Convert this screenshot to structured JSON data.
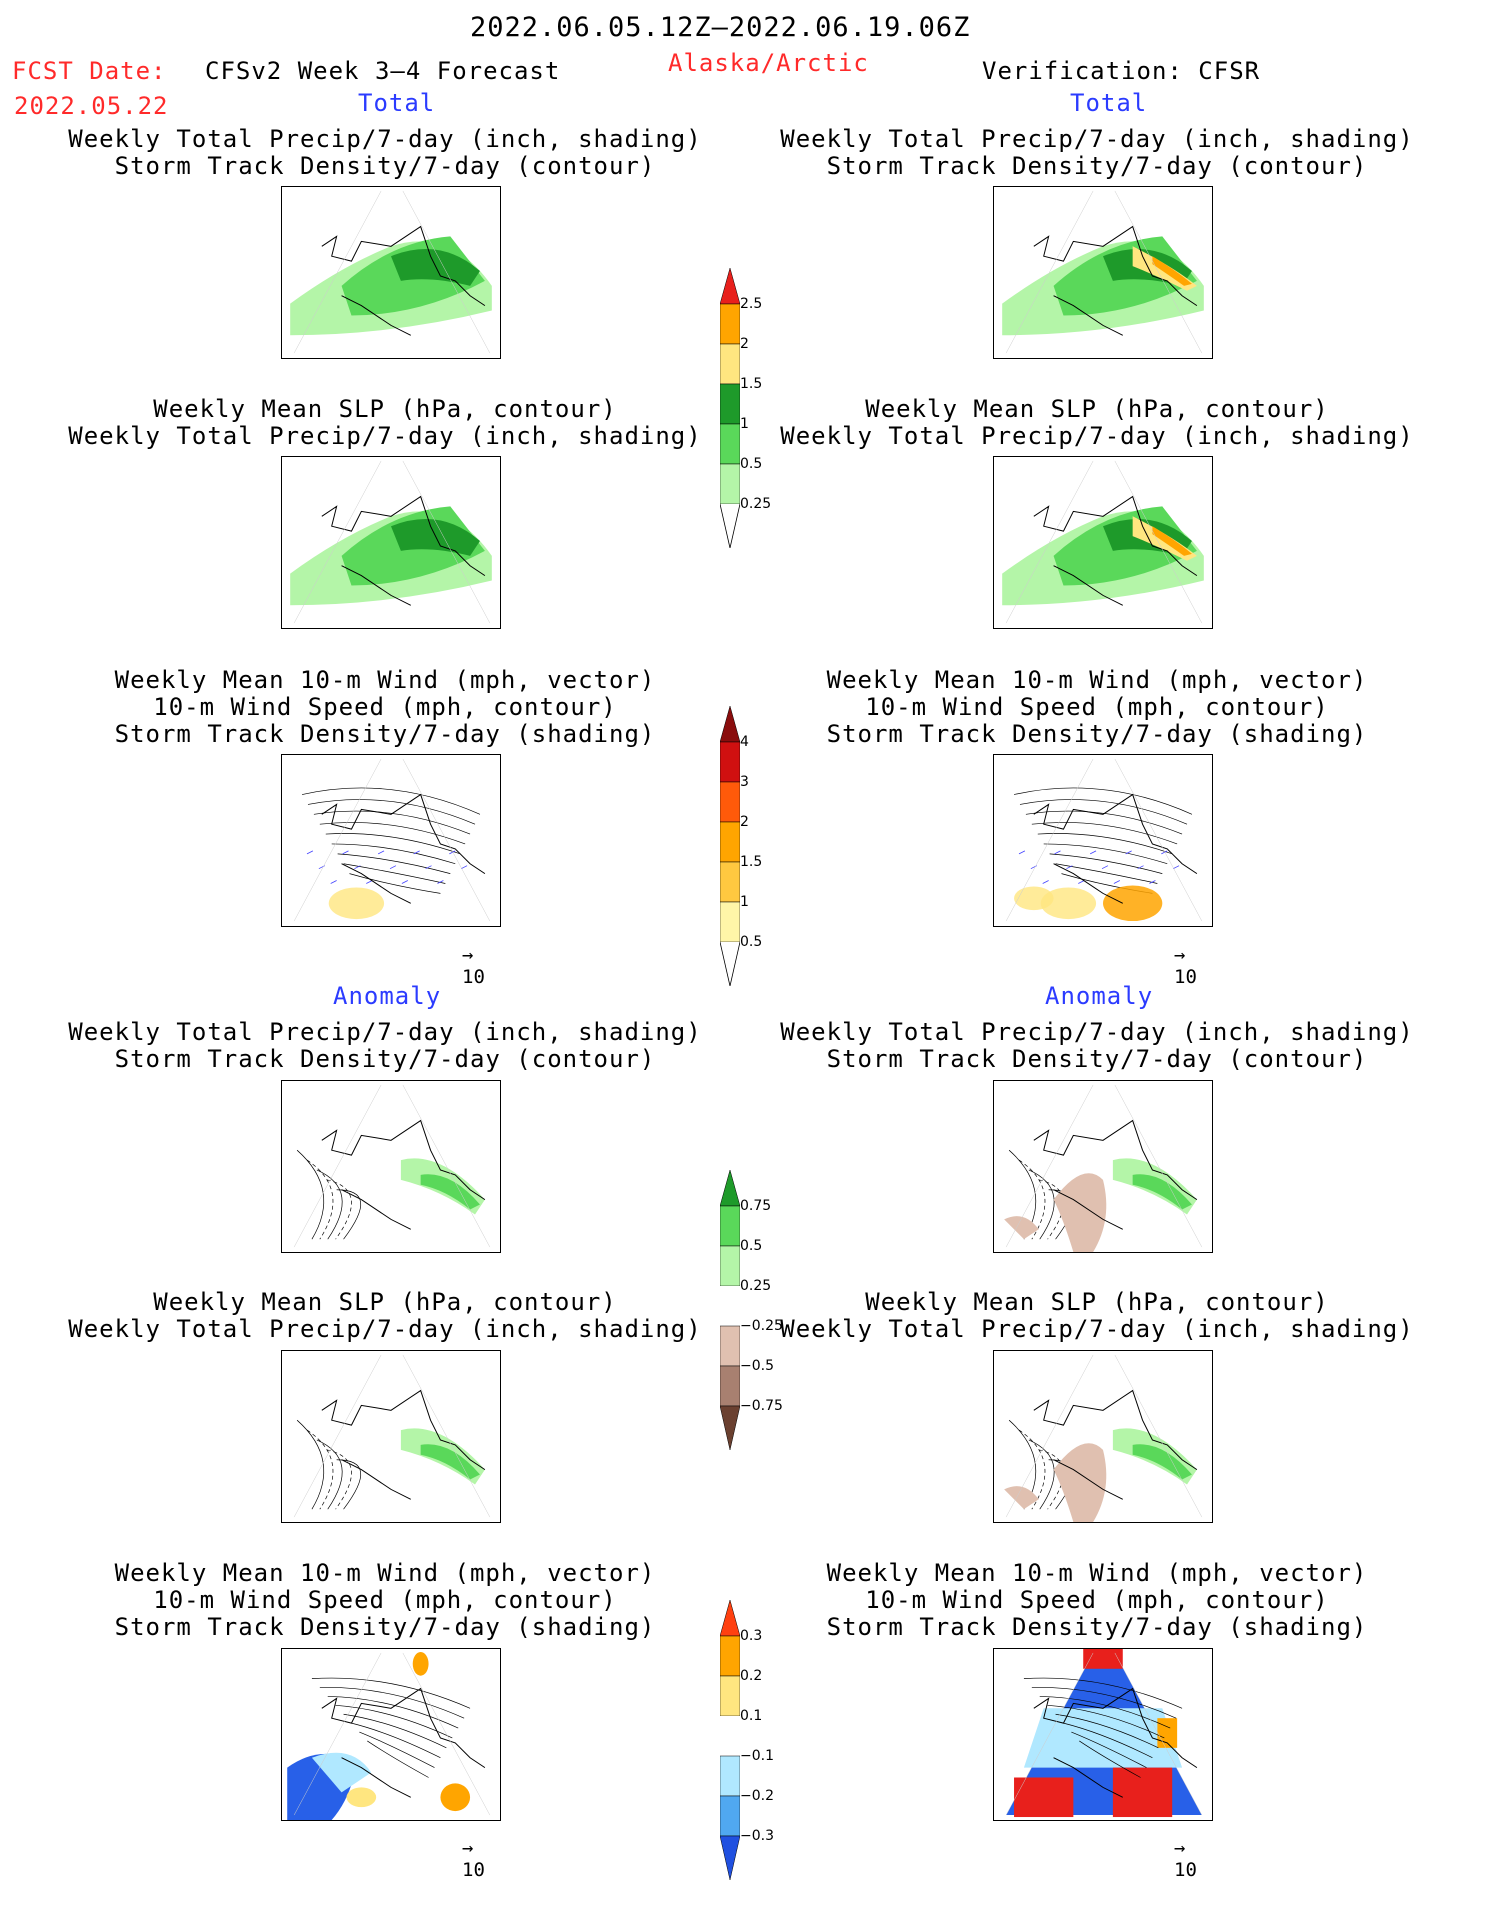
{
  "header": {
    "date_range": "2022.06.05.12Z–2022.06.19.06Z",
    "fcst_label": "FCST Date:",
    "fcst_date": "2022.05.22",
    "model": "CFSv2 Week 3–4 Forecast",
    "region": "Alaska/Arctic",
    "verification": "Verification: CFSR"
  },
  "sections": {
    "total": "Total",
    "anomaly": "Anomaly"
  },
  "captions": {
    "precip_track": [
      "Weekly Total Precip/7-day (inch, shading)",
      "Storm Track Density/7-day (contour)"
    ],
    "slp_precip": [
      "Weekly Mean SLP (hPa, contour)",
      "Weekly Total Precip/7-day (inch, shading)"
    ],
    "wind_track": [
      "Weekly Mean 10-m Wind (mph, vector)",
      "10-m Wind Speed (mph, contour)",
      "Storm Track Density/7-day (shading)"
    ]
  },
  "vector_scale": "10",
  "colorbars": {
    "precip_total": [
      "2.5",
      "2",
      "1.5",
      "1",
      "0.5",
      "0.25"
    ],
    "track_total": [
      "4",
      "3",
      "2",
      "1.5",
      "1",
      "0.5"
    ],
    "precip_anom": [
      "0.75",
      "0.5",
      "0.25",
      "−0.25",
      "−0.5",
      "−0.75"
    ],
    "track_anom": [
      "0.3",
      "0.2",
      "0.1",
      "−0.1",
      "−0.2",
      "−0.3"
    ]
  },
  "colors": {
    "green_light": "#b4f5a8",
    "green_mid": "#5ad85a",
    "green_dark": "#1e9a2a",
    "yellow": "#ffe680",
    "orange": "#ffa500",
    "red": "#e8201c",
    "brown_light": "#e0c0b0",
    "blue_light": "#b0e8ff",
    "blue_dark": "#2860e8"
  }
}
